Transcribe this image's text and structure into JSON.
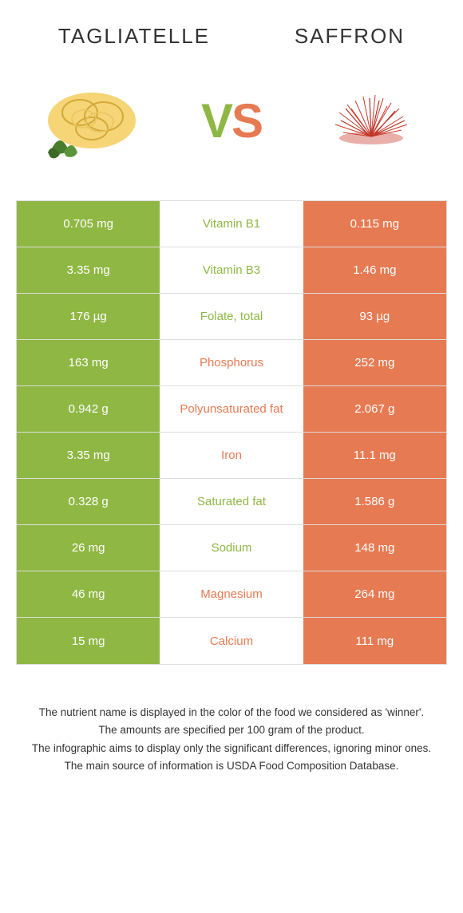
{
  "header": {
    "left_title": "Tagliatelle",
    "right_title": "Saffron"
  },
  "vs": {
    "v": "V",
    "s": "S"
  },
  "colors": {
    "green": "#8fb743",
    "orange": "#e67a52"
  },
  "rows": [
    {
      "left": "0.705 mg",
      "label": "Vitamin B1",
      "right": "0.115 mg",
      "winner": "green"
    },
    {
      "left": "3.35 mg",
      "label": "Vitamin B3",
      "right": "1.46 mg",
      "winner": "green"
    },
    {
      "left": "176 µg",
      "label": "Folate, total",
      "right": "93 µg",
      "winner": "green"
    },
    {
      "left": "163 mg",
      "label": "Phosphorus",
      "right": "252 mg",
      "winner": "orange"
    },
    {
      "left": "0.942 g",
      "label": "Polyunsaturated fat",
      "right": "2.067 g",
      "winner": "orange"
    },
    {
      "left": "3.35 mg",
      "label": "Iron",
      "right": "11.1 mg",
      "winner": "orange"
    },
    {
      "left": "0.328 g",
      "label": "Saturated fat",
      "right": "1.586 g",
      "winner": "green"
    },
    {
      "left": "26 mg",
      "label": "Sodium",
      "right": "148 mg",
      "winner": "green"
    },
    {
      "left": "46 mg",
      "label": "Magnesium",
      "right": "264 mg",
      "winner": "orange"
    },
    {
      "left": "15 mg",
      "label": "Calcium",
      "right": "111 mg",
      "winner": "orange"
    }
  ],
  "footer": {
    "line1": "The nutrient name is displayed in the color of the food we considered as 'winner'.",
    "line2": "The amounts are specified per 100 gram of the product.",
    "line3": "The infographic aims to display only the significant differences, ignoring minor ones.",
    "line4": "The main source of information is USDA Food Composition Database."
  }
}
